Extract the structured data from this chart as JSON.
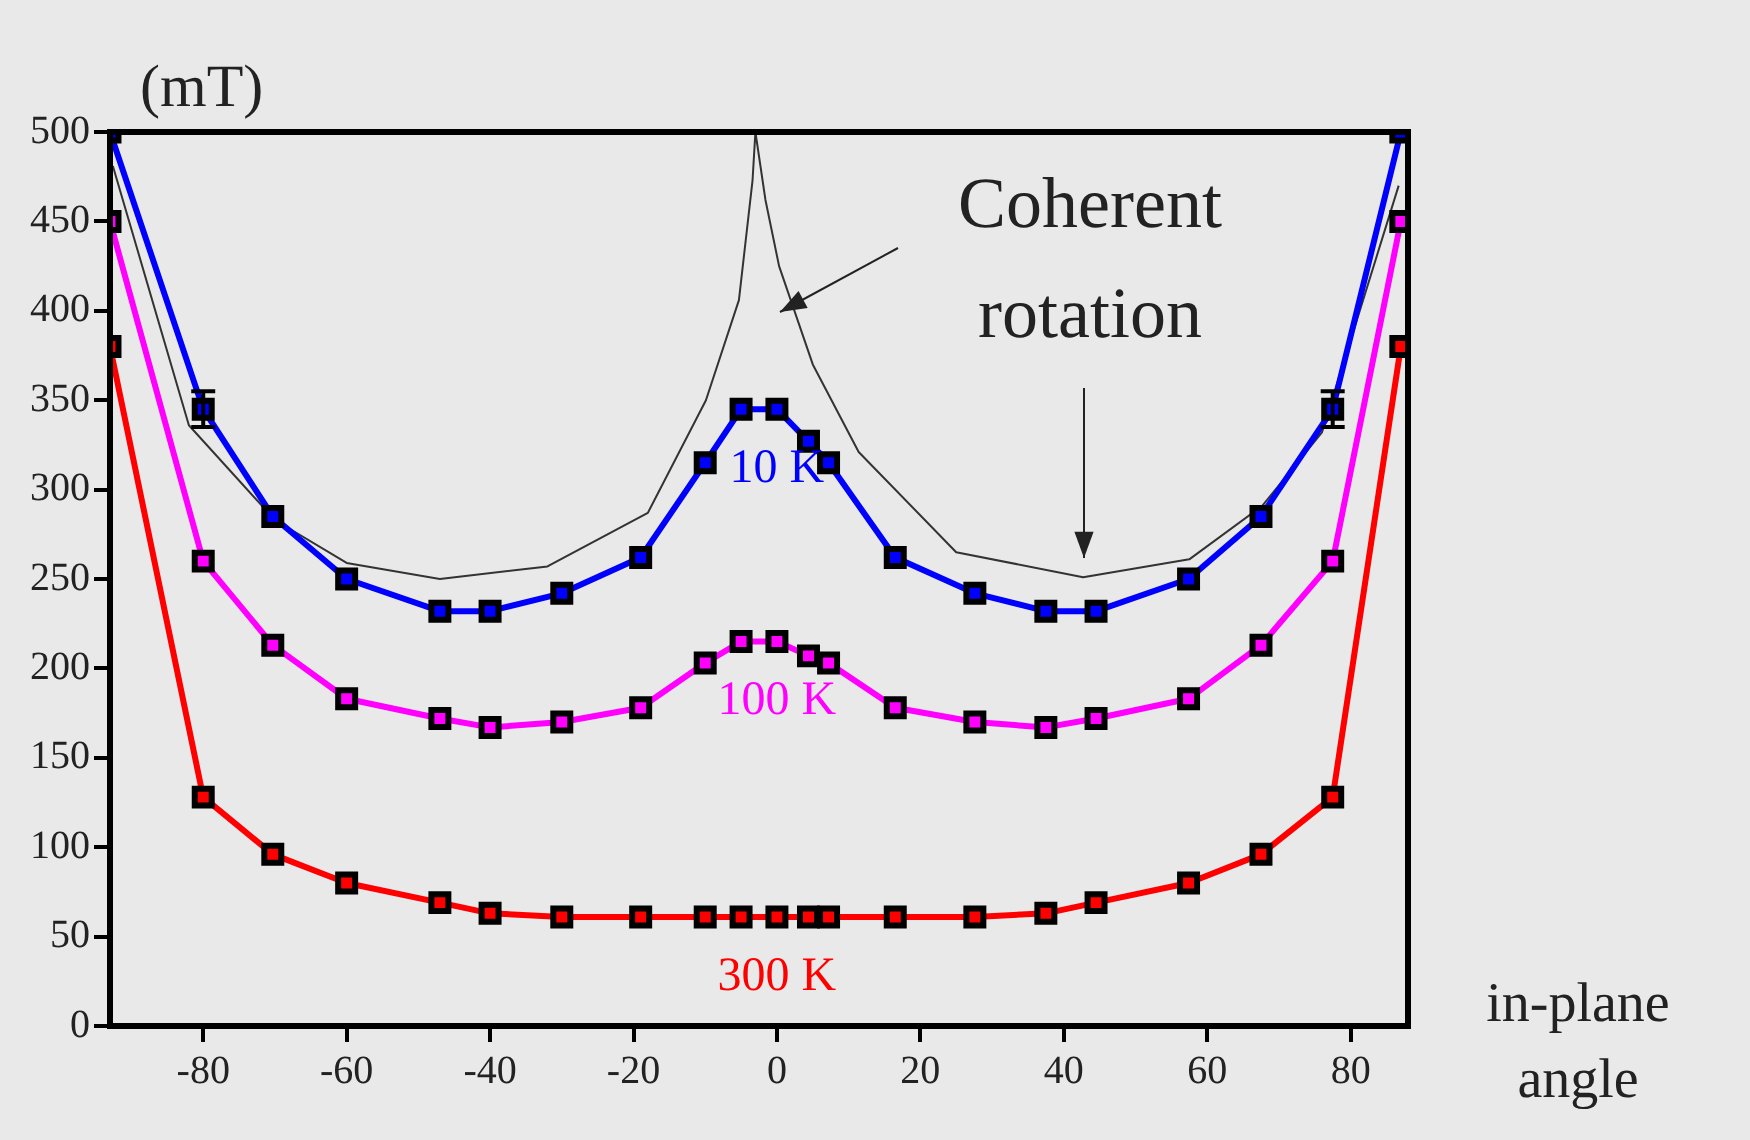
{
  "chart_data": {
    "type": "line",
    "ylabel": "(mT)",
    "xlabel": "in-plane angle",
    "annotations": [
      "Coherent rotation"
    ],
    "xlim": [
      -93,
      88
    ],
    "xticks": [
      -80,
      -60,
      -40,
      -20,
      0,
      20,
      40,
      60,
      80
    ],
    "ylim": [
      0,
      500
    ],
    "yticks": [
      0,
      50,
      100,
      150,
      200,
      250,
      300,
      350,
      400,
      450,
      500
    ],
    "grid": false,
    "legend": false,
    "marker": "square",
    "line_style": "solid",
    "x": [
      -93,
      -80,
      -70.3,
      -60,
      -47,
      -40,
      -30,
      -19,
      -10,
      -5,
      0,
      4.4,
      7.2,
      16.5,
      27.6,
      37.5,
      44.5,
      57.4,
      67.5,
      77.5,
      87
    ],
    "series": [
      {
        "name": "10 K",
        "color": "#0000ff",
        "values": [
          500,
          345,
          285,
          250,
          232,
          232,
          242,
          262,
          315,
          345,
          345,
          327,
          315,
          262,
          242,
          232,
          232,
          250,
          285,
          345,
          500
        ],
        "errors": [
          null,
          10,
          null,
          null,
          null,
          null,
          null,
          null,
          null,
          null,
          null,
          null,
          null,
          null,
          null,
          null,
          null,
          null,
          null,
          10,
          null
        ]
      },
      {
        "name": "100 K",
        "color": "#ff00ff",
        "values": [
          450,
          260,
          213,
          183,
          172,
          167,
          170,
          178,
          203,
          215,
          215,
          207,
          203,
          178,
          170,
          167,
          172,
          183,
          213,
          260,
          450
        ]
      },
      {
        "name": "300 K",
        "color": "#ff0000",
        "values": [
          380,
          128,
          96,
          80,
          69,
          63,
          61,
          61,
          61,
          61,
          61,
          61,
          61,
          61,
          61,
          63,
          69,
          80,
          96,
          128,
          380
        ]
      },
      {
        "color": "#333333",
        "marker": "none",
        "x": [
          -92.6,
          -82,
          -70,
          -60,
          -47,
          -32,
          -18,
          -9.9,
          -5.3,
          -3.4,
          -3,
          -1.6,
          0.3,
          5,
          11.4,
          25,
          42.7,
          57.5,
          67.7,
          76,
          86.7
        ],
        "values": [
          481,
          336,
          283,
          259,
          250,
          257,
          287,
          350,
          406,
          473,
          500,
          462,
          425,
          370,
          321,
          265,
          251,
          261,
          291,
          332,
          470
        ]
      }
    ]
  }
}
